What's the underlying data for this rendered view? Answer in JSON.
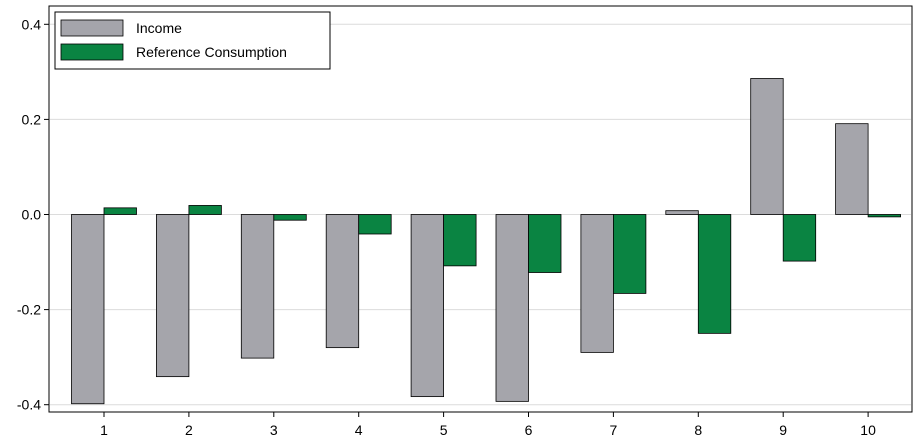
{
  "chart_data": {
    "type": "bar",
    "categories": [
      "1",
      "2",
      "3",
      "4",
      "5",
      "6",
      "7",
      "8",
      "9",
      "10"
    ],
    "series": [
      {
        "name": "Income",
        "color": "#a5a5ab",
        "values": [
          -0.398,
          -0.341,
          -0.302,
          -0.28,
          -0.383,
          -0.393,
          -0.29,
          0.008,
          0.286,
          0.191
        ]
      },
      {
        "name": "Reference Consumption",
        "color": "#0a8442",
        "values": [
          0.014,
          0.019,
          -0.012,
          -0.041,
          -0.108,
          -0.122,
          -0.166,
          -0.25,
          -0.098,
          -0.005
        ]
      }
    ],
    "yticks": [
      "0.4",
      "0.2",
      "0.0",
      "-0.2",
      "-0.4"
    ],
    "ytick_values": [
      0.4,
      0.2,
      0.0,
      -0.2,
      -0.4
    ],
    "ylim": [
      -0.4,
      0.4
    ],
    "grid": true,
    "legend_position": "top-left",
    "title": "",
    "xlabel": "",
    "ylabel": ""
  }
}
